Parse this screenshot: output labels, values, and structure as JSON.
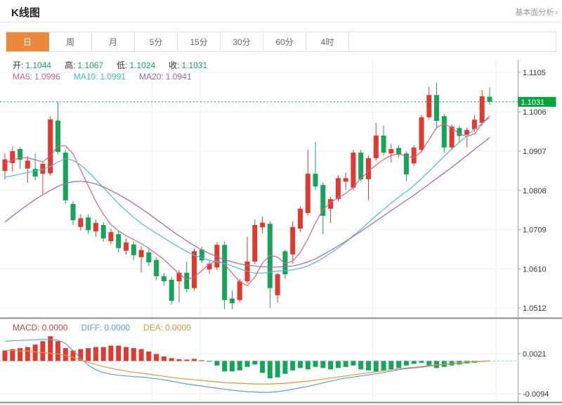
{
  "header": {
    "title": "K线图",
    "link_label": "基本面分析",
    "link_arrow": "›"
  },
  "tabs": {
    "items": [
      {
        "id": "day",
        "label": "日",
        "active": true
      },
      {
        "id": "week",
        "label": "周",
        "active": false
      },
      {
        "id": "month",
        "label": "月",
        "active": false
      },
      {
        "id": "5min",
        "label": "5分",
        "active": false
      },
      {
        "id": "15min",
        "label": "15分",
        "active": false
      },
      {
        "id": "30min",
        "label": "30分",
        "active": false
      },
      {
        "id": "60min",
        "label": "60分",
        "active": false
      },
      {
        "id": "4hour",
        "label": "4时",
        "active": false
      }
    ]
  },
  "legends": {
    "ohlc": [
      {
        "id": "open",
        "label": "开:",
        "value": "1.1044",
        "label_color": "#333333",
        "value_color": "#18a35a"
      },
      {
        "id": "high",
        "label": "高:",
        "value": "1.1067",
        "label_color": "#333333",
        "value_color": "#18a35a"
      },
      {
        "id": "low",
        "label": "低:",
        "value": "1.1024",
        "label_color": "#333333",
        "value_color": "#18a35a"
      },
      {
        "id": "close",
        "label": "收:",
        "value": "1.1031",
        "label_color": "#333333",
        "value_color": "#18a35a"
      }
    ],
    "ma": [
      {
        "id": "ma5",
        "label": "MA5:",
        "value": "1.0996",
        "color": "#d4608b"
      },
      {
        "id": "ma10",
        "label": "MA10:",
        "value": "1.0991",
        "color": "#3fb6c9"
      },
      {
        "id": "ma20",
        "label": "MA20:",
        "value": "1.0941",
        "color": "#9d62ad"
      }
    ],
    "macd": [
      {
        "id": "macd",
        "label": "MACD:",
        "value": "0.0000",
        "color": "#c44a3c"
      },
      {
        "id": "diff",
        "label": "DIFF:",
        "value": "0.0000",
        "color": "#5b9cd6"
      },
      {
        "id": "dea",
        "label": "DEA:",
        "value": "0.0000",
        "color": "#e2913e"
      }
    ]
  },
  "colors": {
    "up": "#df3a30",
    "down": "#18a35a",
    "ma5": "#d4608b",
    "ma10": "#4cbccb",
    "ma20": "#a265ab",
    "diff": "#5b9cd6",
    "dea": "#e2913e",
    "badge_bg": "#0aa140",
    "badge_text": "#ffffff",
    "dotted_price_line": "#18a35a",
    "macd_zero_dash": "#8fd0dc",
    "grid": "#efefef",
    "vgrid": "#ececec",
    "axis_line": "#999999",
    "axis_text": "#333333",
    "separator": "#8c8c8c"
  },
  "chart_data": {
    "type": "candlestick+macd",
    "title": "K线图",
    "legend_position": "top-left",
    "grid": true,
    "main": {
      "ylim": [
        1.0512,
        1.1105
      ],
      "y_ticks": [
        1.1105,
        1.1006,
        1.0907,
        1.0808,
        1.0709,
        1.061,
        1.0512
      ],
      "current_price": 1.1031,
      "grid_x_indices": [
        19.4,
        25.8,
        48.5,
        64.9
      ],
      "candles": [
        [
          1.0857,
          1.0901,
          1.0836,
          1.0886
        ],
        [
          1.0877,
          1.0919,
          1.0855,
          1.0907
        ],
        [
          1.0912,
          1.0917,
          1.0862,
          1.0885
        ],
        [
          1.0863,
          1.0894,
          1.0827,
          1.0883
        ],
        [
          1.0862,
          1.0901,
          1.0834,
          1.0843
        ],
        [
          1.085,
          1.088,
          1.0797,
          1.0875
        ],
        [
          1.0851,
          1.0995,
          1.0845,
          1.0987
        ],
        [
          1.0984,
          1.1031,
          1.0899,
          1.0905
        ],
        [
          1.0903,
          1.091,
          1.0774,
          1.0783
        ],
        [
          1.0774,
          1.0781,
          1.0721,
          1.0733
        ],
        [
          1.0716,
          1.0748,
          1.0707,
          1.0738
        ],
        [
          1.074,
          1.0747,
          1.0698,
          1.0708
        ],
        [
          1.0705,
          1.0735,
          1.0691,
          1.0726
        ],
        [
          1.0721,
          1.0728,
          1.0678,
          1.0687
        ],
        [
          1.068,
          1.0712,
          1.0672,
          1.0703
        ],
        [
          1.0698,
          1.0705,
          1.0652,
          1.0663
        ],
        [
          1.0656,
          1.0687,
          1.0647,
          1.0677
        ],
        [
          1.0672,
          1.068,
          1.0633,
          1.0645
        ],
        [
          1.064,
          1.0668,
          1.0602,
          1.0658
        ],
        [
          1.0652,
          1.0661,
          1.0617,
          1.0627
        ],
        [
          1.0633,
          1.064,
          1.0582,
          1.0592
        ],
        [
          1.0592,
          1.0601,
          1.0568,
          1.0579
        ],
        [
          1.0583,
          1.059,
          1.0521,
          1.053
        ],
        [
          1.0579,
          1.0607,
          1.0526,
          1.0601
        ],
        [
          1.0601,
          1.0629,
          1.0552,
          1.056
        ],
        [
          1.0562,
          1.0662,
          1.0556,
          1.0655
        ],
        [
          1.0659,
          1.0666,
          1.0625,
          1.0632
        ],
        [
          1.0609,
          1.0632,
          1.0598,
          1.0623
        ],
        [
          1.0614,
          1.0678,
          1.0607,
          1.0671
        ],
        [
          1.0671,
          1.068,
          1.0509,
          1.0532
        ],
        [
          1.0536,
          1.0556,
          1.0509,
          1.0524
        ],
        [
          1.0532,
          1.0585,
          1.0526,
          1.0579
        ],
        [
          1.0579,
          1.0691,
          1.0573,
          1.0629
        ],
        [
          1.0629,
          1.0735,
          1.0622,
          1.0721
        ],
        [
          1.0715,
          1.0742,
          1.07,
          1.0727
        ],
        [
          1.0724,
          1.073,
          1.0512,
          1.0562
        ],
        [
          1.0544,
          1.0601,
          1.0526,
          1.0597
        ],
        [
          1.0655,
          1.0659,
          1.0585,
          1.0597
        ],
        [
          1.0647,
          1.073,
          1.0624,
          1.0716
        ],
        [
          1.0712,
          1.0768,
          1.0703,
          1.0762
        ],
        [
          1.0751,
          1.091,
          1.0745,
          1.085
        ],
        [
          1.085,
          1.093,
          1.081,
          1.0818
        ],
        [
          1.0822,
          1.0828,
          1.0698,
          1.0744
        ],
        [
          1.0762,
          1.0793,
          1.0726,
          1.0786
        ],
        [
          1.0786,
          1.0846,
          1.078,
          1.0839
        ],
        [
          1.083,
          1.0853,
          1.081,
          1.0839
        ],
        [
          1.0815,
          1.091,
          1.0808,
          1.0903
        ],
        [
          1.0903,
          1.091,
          1.083,
          1.0836
        ],
        [
          1.0836,
          1.0896,
          1.0783,
          1.0889
        ],
        [
          1.0889,
          1.0978,
          1.0883,
          1.0946
        ],
        [
          1.0946,
          1.0971,
          1.0896,
          1.0903
        ],
        [
          1.0901,
          1.0925,
          1.0878,
          1.0912
        ],
        [
          1.0915,
          1.0922,
          1.089,
          1.0898
        ],
        [
          1.0901,
          1.0906,
          1.0831,
          1.0848
        ],
        [
          1.0876,
          1.0922,
          1.087,
          1.0916
        ],
        [
          1.091,
          1.0998,
          1.0903,
          1.0992
        ],
        [
          1.0992,
          1.1069,
          1.0986,
          1.1048
        ],
        [
          1.1048,
          1.1078,
          1.0965,
          1.0983
        ],
        [
          1.0995,
          1.1,
          1.0903,
          1.0916
        ],
        [
          1.0916,
          1.0975,
          1.091,
          1.0969
        ],
        [
          1.0965,
          1.0971,
          1.0928,
          1.0945
        ],
        [
          1.0948,
          1.0966,
          1.0916,
          1.096
        ],
        [
          1.0962,
          1.0998,
          1.0956,
          1.0986
        ],
        [
          1.0978,
          1.1061,
          1.0971,
          1.1045
        ],
        [
          1.1044,
          1.1067,
          1.1024,
          1.1031
        ]
      ],
      "ma5": [
        1.0877,
        1.0884,
        1.089,
        1.089,
        1.0885,
        1.088,
        1.0895,
        1.092,
        1.092,
        1.09,
        1.086,
        1.082,
        1.078,
        1.0748,
        1.0722,
        1.0706,
        1.0694,
        1.0684,
        1.0674,
        1.0662,
        1.0648,
        1.0634,
        1.0616,
        1.0598,
        1.0584,
        1.059,
        1.0606,
        1.0622,
        1.0632,
        1.0622,
        1.06,
        1.0578,
        1.0568,
        1.059,
        1.0625,
        1.0645,
        1.064,
        1.0624,
        1.063,
        1.0652,
        1.0686,
        1.0726,
        1.076,
        1.0778,
        1.079,
        1.08,
        1.0816,
        1.0838,
        1.0856,
        1.0872,
        1.0886,
        1.0896,
        1.09,
        1.0894,
        1.089,
        1.0906,
        1.0936,
        1.0966,
        1.0976,
        1.0966,
        1.095,
        1.0944,
        1.095,
        1.0976,
        1.0996
      ],
      "ma10": [
        1.0841,
        1.0845,
        1.0849,
        1.0853,
        1.0857,
        1.0861,
        1.0868,
        1.088,
        1.0888,
        1.0884,
        1.0872,
        1.0855,
        1.0835,
        1.0815,
        1.0795,
        1.0775,
        1.0757,
        1.074,
        1.0725,
        1.0712,
        1.07,
        1.0688,
        1.0676,
        1.0665,
        1.0654,
        1.0645,
        1.0638,
        1.0632,
        1.0628,
        1.0624,
        1.0618,
        1.0611,
        1.0604,
        1.06,
        1.06,
        1.0602,
        1.0605,
        1.0606,
        1.0608,
        1.0612,
        1.0618,
        1.0627,
        1.0638,
        1.065,
        1.0663,
        1.0678,
        1.0694,
        1.071,
        1.0727,
        1.0744,
        1.076,
        1.0776,
        1.0791,
        1.0805,
        1.082,
        1.0838,
        1.0856,
        1.0875,
        1.0894,
        1.0912,
        1.0929,
        1.0946,
        1.0962,
        1.0977,
        1.0991
      ],
      "ma20": [
        1.0728,
        1.0744,
        1.0758,
        1.0772,
        1.0785,
        1.0797,
        1.0808,
        1.0818,
        1.0826,
        1.083,
        1.0831,
        1.0829,
        1.0824,
        1.0817,
        1.0808,
        1.0798,
        1.0787,
        1.0775,
        1.0762,
        1.0749,
        1.0735,
        1.0721,
        1.0707,
        1.0694,
        1.0681,
        1.0669,
        1.0658,
        1.0649,
        1.0641,
        1.0634,
        1.0628,
        1.0623,
        1.062,
        1.0618,
        1.0616,
        1.0615,
        1.0615,
        1.0616,
        1.0618,
        1.0622,
        1.0628,
        1.0636,
        1.0646,
        1.0657,
        1.0668,
        1.068,
        1.0692,
        1.0705,
        1.0718,
        1.0731,
        1.0744,
        1.0757,
        1.077,
        1.0783,
        1.0796,
        1.081,
        1.0824,
        1.0838,
        1.0852,
        1.0866,
        1.0881,
        1.0896,
        1.0911,
        1.0926,
        1.0941
      ]
    },
    "macd": {
      "ylim": [
        -0.0094,
        0.0021
      ],
      "y_ticks": [
        0.0021,
        -0.0094
      ],
      "histogram": [
        0.003,
        0.0034,
        0.0037,
        0.004,
        0.0047,
        0.0057,
        0.0071,
        0.0057,
        0.0037,
        0.003,
        0.0034,
        0.0037,
        0.004,
        0.004,
        0.0044,
        0.0044,
        0.004,
        0.0037,
        0.0034,
        0.0027,
        0.002,
        0.0013,
        0.0008,
        0.0005,
        0.0004,
        0.0006,
        0.0002,
        -0.0001,
        -0.0013,
        -0.003,
        -0.003,
        -0.0027,
        -0.0017,
        -0.001,
        -0.0034,
        -0.005,
        -0.0047,
        -0.0037,
        -0.0027,
        -0.002,
        -0.0024,
        -0.0017,
        -0.002,
        -0.0024,
        -0.002,
        -0.0017,
        -0.0013,
        -0.0024,
        -0.0027,
        -0.003,
        -0.0027,
        -0.0024,
        -0.002,
        -0.0013,
        -0.0008,
        -0.0005,
        -0.0013,
        -0.002,
        -0.0017,
        -0.0013,
        -0.001,
        -0.0007,
        -0.0005,
        -0.0002,
        0.0
      ],
      "diff": [
        0.0057,
        0.0058,
        0.0059,
        0.006,
        0.0061,
        0.0062,
        0.0062,
        0.006,
        0.005,
        0.003,
        0.0008,
        -0.0012,
        -0.0025,
        -0.0033,
        -0.0038,
        -0.0041,
        -0.0043,
        -0.0045,
        -0.0046,
        -0.0048,
        -0.0051,
        -0.0054,
        -0.0058,
        -0.0062,
        -0.0066,
        -0.0069,
        -0.0072,
        -0.0075,
        -0.0078,
        -0.0081,
        -0.0084,
        -0.0086,
        -0.0088,
        -0.0089,
        -0.009,
        -0.009,
        -0.0088,
        -0.0085,
        -0.0081,
        -0.0077,
        -0.0073,
        -0.0068,
        -0.0063,
        -0.0058,
        -0.0053,
        -0.0049,
        -0.0046,
        -0.0043,
        -0.004,
        -0.0037,
        -0.0033,
        -0.0029,
        -0.0025,
        -0.0022,
        -0.002,
        -0.0018,
        -0.0015,
        -0.0012,
        -0.001,
        -0.0008,
        -0.0006,
        -0.0004,
        -0.0002,
        -0.0001,
        0.0
      ],
      "dea": [
        0.003,
        0.003,
        0.0029,
        0.0028,
        0.0026,
        0.0024,
        0.0022,
        0.002,
        0.0016,
        0.001,
        0.0003,
        -0.0004,
        -0.001,
        -0.0016,
        -0.0021,
        -0.0025,
        -0.0029,
        -0.0032,
        -0.0035,
        -0.0038,
        -0.0041,
        -0.0044,
        -0.0047,
        -0.005,
        -0.0052,
        -0.0054,
        -0.0056,
        -0.0058,
        -0.006,
        -0.0062,
        -0.0063,
        -0.0064,
        -0.0065,
        -0.0066,
        -0.0066,
        -0.0066,
        -0.0065,
        -0.0064,
        -0.0062,
        -0.006,
        -0.0058,
        -0.0055,
        -0.0052,
        -0.0049,
        -0.0046,
        -0.0043,
        -0.004,
        -0.0037,
        -0.0034,
        -0.0031,
        -0.0028,
        -0.0025,
        -0.0022,
        -0.002,
        -0.0018,
        -0.0016,
        -0.0013,
        -0.0011,
        -0.0009,
        -0.0007,
        -0.0005,
        -0.0003,
        -0.0002,
        -0.0001,
        0.0
      ]
    }
  }
}
